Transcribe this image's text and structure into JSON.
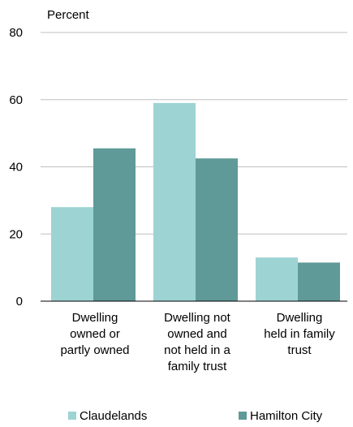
{
  "chart_data": {
    "type": "bar",
    "title": "",
    "ylabel": "Percent",
    "xlabel": "",
    "ylim": [
      0,
      80
    ],
    "yticks": [
      0,
      20,
      40,
      60,
      80
    ],
    "grid": true,
    "legend_position": "bottom",
    "categories": [
      [
        "Dwelling",
        "owned or",
        "partly owned"
      ],
      [
        "Dwelling not",
        "owned and",
        "not held in a",
        "family trust"
      ],
      [
        "Dwelling",
        "held in family",
        "trust"
      ]
    ],
    "series": [
      {
        "name": "Claudelands",
        "color": "#9dd3d3",
        "values": [
          28,
          59,
          13
        ]
      },
      {
        "name": "Hamilton City",
        "color": "#5f9a98",
        "values": [
          45.5,
          42.5,
          11.5
        ]
      }
    ]
  }
}
